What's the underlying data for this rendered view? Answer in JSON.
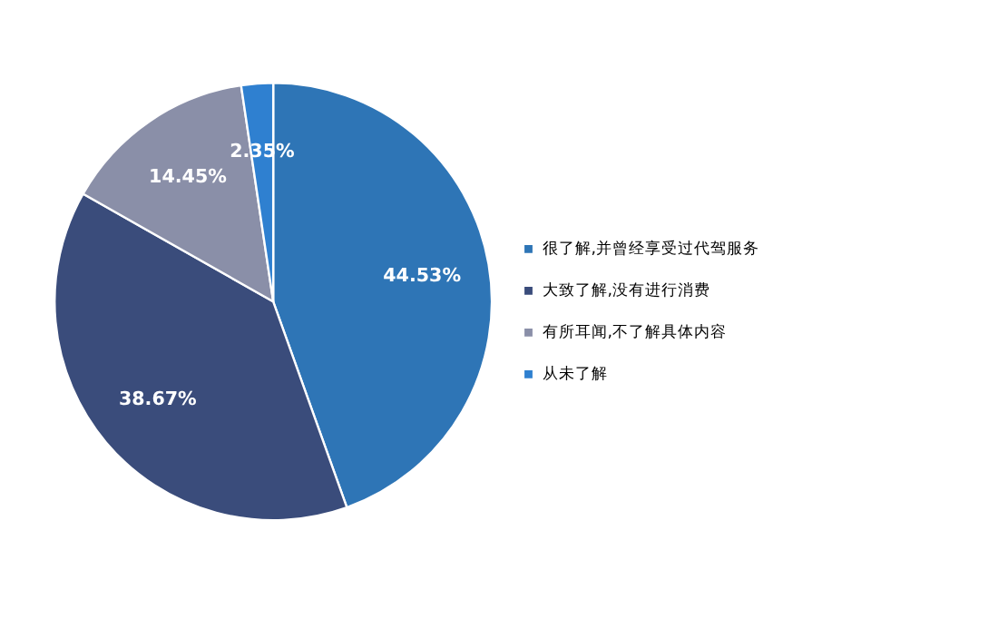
{
  "chart_data": {
    "type": "pie",
    "categories": [
      "很了解,并曾经享受过代驾服务",
      "大致了解,没有进行消费",
      "有所耳闻,不了解具体内容",
      "从未了解"
    ],
    "values": [
      44.53,
      38.67,
      14.45,
      2.35
    ],
    "value_labels": [
      "44.53%",
      "38.67%",
      "14.45%",
      "2.35%"
    ],
    "colors": [
      "#2e75b6",
      "#3a4c7b",
      "#8a8fa8",
      "#2f80d0"
    ],
    "legend": "right"
  }
}
